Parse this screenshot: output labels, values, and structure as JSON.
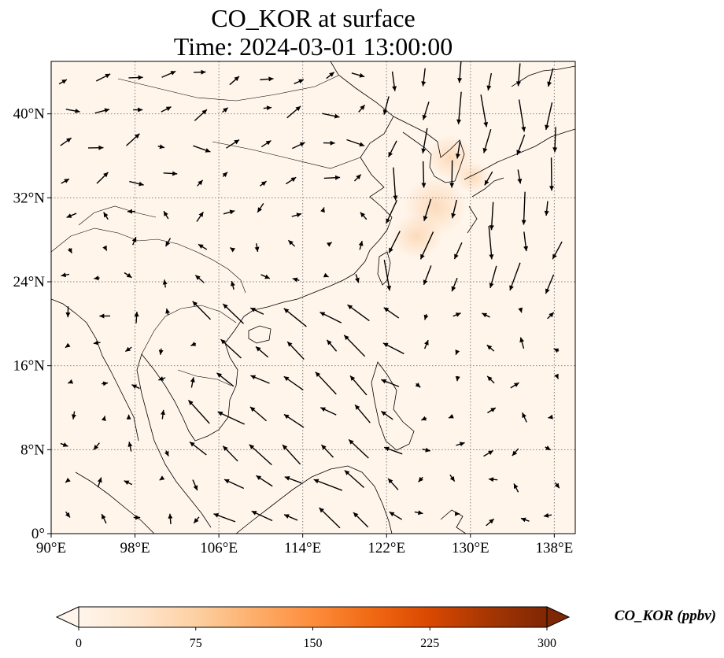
{
  "title": {
    "line1": "CO_KOR at surface",
    "line2": "Time: 2024-03-01 13:00:00"
  },
  "map": {
    "extent": {
      "lon": [
        90,
        140
      ],
      "lat": [
        0,
        45
      ]
    },
    "background_color": "#fff5eb",
    "x_ticks": [
      {
        "value": 90,
        "label": "90°E"
      },
      {
        "value": 98,
        "label": "98°E"
      },
      {
        "value": 106,
        "label": "106°E"
      },
      {
        "value": 114,
        "label": "114°E"
      },
      {
        "value": 122,
        "label": "122°E"
      },
      {
        "value": 130,
        "label": "130°E"
      },
      {
        "value": 138,
        "label": "138°E"
      }
    ],
    "y_ticks": [
      {
        "value": 0,
        "label": "0°"
      },
      {
        "value": 8,
        "label": "8°N"
      },
      {
        "value": 16,
        "label": "16°N"
      },
      {
        "value": 24,
        "label": "24°N"
      },
      {
        "value": 32,
        "label": "32°N"
      },
      {
        "value": 40,
        "label": "40°N"
      }
    ],
    "gridlines": true,
    "plume_color": "#fde0c5"
  },
  "colorbar": {
    "label": "CO_KOR (ppbv)",
    "min": 0,
    "max": 300,
    "extend": "both",
    "ticks": [
      "0",
      "75",
      "150",
      "225",
      "300"
    ],
    "colors": [
      "#fff5eb",
      "#fee6ce",
      "#fdd0a2",
      "#fdae6b",
      "#fd8d3c",
      "#f16913",
      "#d94801",
      "#a63603",
      "#7f2704"
    ],
    "under_color": "#fff5eb",
    "over_color": "#7f2704"
  }
}
